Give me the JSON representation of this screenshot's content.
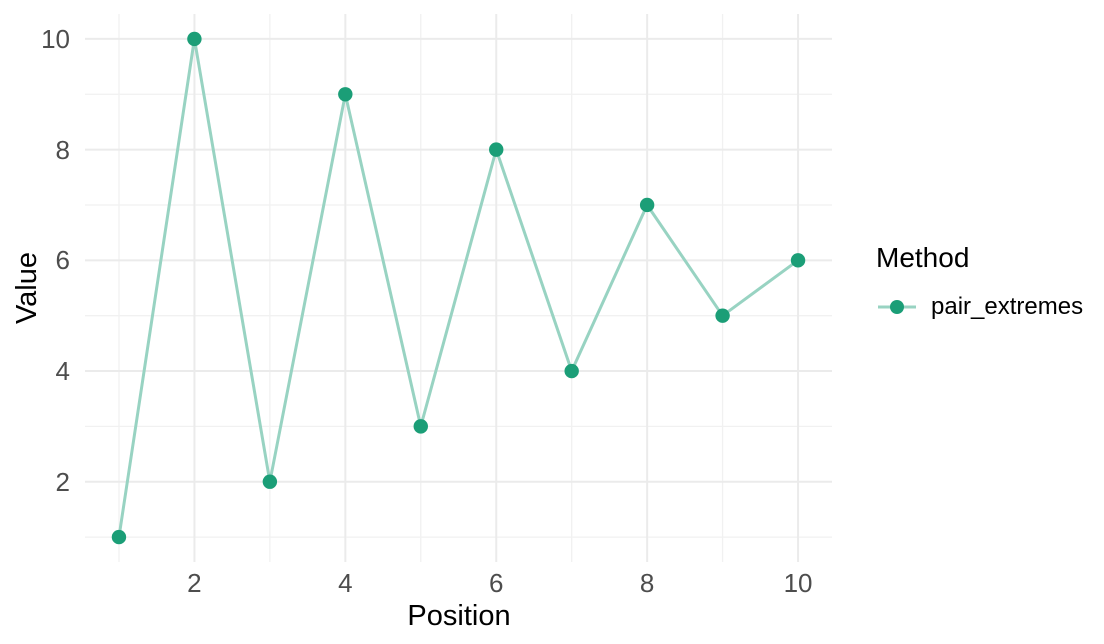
{
  "chart_data": {
    "type": "line",
    "title": "",
    "xlabel": "Position",
    "ylabel": "Value",
    "x": [
      1,
      2,
      3,
      4,
      5,
      6,
      7,
      8,
      9,
      10
    ],
    "series": [
      {
        "name": "pair_extremes",
        "values": [
          1,
          10,
          2,
          9,
          3,
          8,
          4,
          7,
          5,
          6
        ]
      }
    ],
    "xlim": [
      0.55,
      10.45
    ],
    "ylim": [
      0.55,
      10.45
    ],
    "x_ticks": [
      2,
      4,
      6,
      8,
      10
    ],
    "y_ticks": [
      2,
      4,
      6,
      8,
      10
    ],
    "x_minor_gridlines": [
      1,
      3,
      5,
      7,
      9
    ],
    "y_minor_gridlines": [
      1,
      3,
      5,
      7,
      9
    ],
    "grid": "major+minor",
    "legend_position": "right",
    "legend_title": "Method",
    "colors": {
      "point": "#1B9E77",
      "line": "#98D3C2",
      "grid_major": "#EBEBEB",
      "grid_minor": "#F1F1F1",
      "tick_text": "#4D4D4D",
      "title_text": "#000000",
      "background": "#FFFFFF"
    }
  },
  "axes": {
    "x_label": "Position",
    "y_label": "Value"
  },
  "legend": {
    "title": "Method",
    "items": [
      {
        "label": "pair_extremes",
        "point_color": "#1B9E77",
        "line_color": "#98D3C2"
      }
    ]
  }
}
